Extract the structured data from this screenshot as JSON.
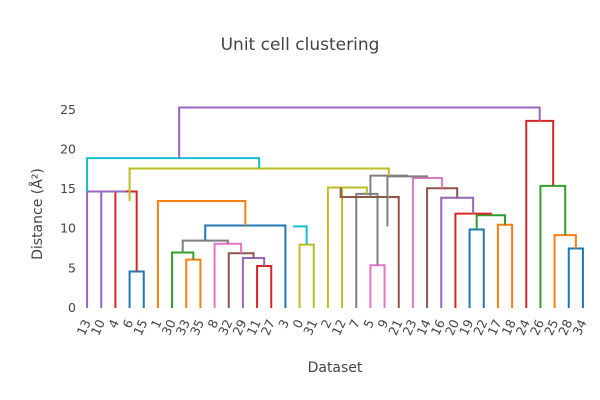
{
  "chart_data": {
    "type": "dendrogram",
    "title": "Unit cell clustering",
    "xlabel": "Dataset",
    "ylabel": "Distance (Å²)",
    "ylim": [
      0,
      27.5
    ],
    "yticks": [
      0,
      5,
      10,
      15,
      20,
      25
    ],
    "ytick_labels": [
      "0",
      "5",
      "10",
      "15",
      "20",
      "25"
    ],
    "grid": false,
    "leaves": [
      "13",
      "10",
      "4",
      "6",
      "15",
      "1",
      "30",
      "33",
      "35",
      "8",
      "32",
      "29",
      "11",
      "27",
      "3",
      "0",
      "31",
      "2",
      "12",
      "7",
      "5",
      "9",
      "21",
      "23",
      "14",
      "16",
      "20",
      "19",
      "22",
      "17",
      "18",
      "24",
      "26",
      "25",
      "28",
      "34"
    ],
    "links": [
      {
        "left": 3,
        "right": 4,
        "height": 4.6,
        "left_height": 0,
        "right_height": 0,
        "color": "#1f77b4"
      },
      {
        "left": 2,
        "right": 3.5,
        "height": 14.7,
        "left_height": 0,
        "right_height": 4.6,
        "color": "#d62728"
      },
      {
        "left": 1,
        "right": 2.75,
        "height": 14.7,
        "left_height": 0,
        "right_height": 14.7,
        "color": "#9467bd"
      },
      {
        "left": 0,
        "right": 1.875,
        "height": 14.7,
        "left_height": 0,
        "right_height": 14.7,
        "color": "#9467bd"
      },
      {
        "left": 7,
        "right": 8,
        "height": 6.1,
        "left_height": 0,
        "right_height": 0,
        "color": "#ff7f0e"
      },
      {
        "left": 6,
        "right": 7.5,
        "height": 7.0,
        "left_height": 0,
        "right_height": 6.1,
        "color": "#2ca02c"
      },
      {
        "left": 12,
        "right": 13,
        "height": 5.3,
        "left_height": 0,
        "right_height": 0,
        "color": "#d62728"
      },
      {
        "left": 11,
        "right": 12.5,
        "height": 6.3,
        "left_height": 0,
        "right_height": 5.3,
        "color": "#9467bd"
      },
      {
        "left": 10,
        "right": 11.75,
        "height": 6.9,
        "left_height": 0,
        "right_height": 6.3,
        "color": "#8c564b"
      },
      {
        "left": 9,
        "right": 10.875,
        "height": 8.1,
        "left_height": 0,
        "right_height": 6.9,
        "color": "#e377c2"
      },
      {
        "left": 6.75,
        "right": 9.9375,
        "height": 8.5,
        "left_height": 7.0,
        "right_height": 8.1,
        "color": "#7f7f7f"
      },
      {
        "left": 8.34,
        "right": 14,
        "height": 10.4,
        "left_height": 8.5,
        "right_height": 0,
        "color": "#1f77b4"
      },
      {
        "left": 5,
        "right": 11.17,
        "height": 13.5,
        "left_height": 0,
        "right_height": 10.4,
        "color": "#ff7f0e"
      },
      {
        "left": 15,
        "right": 16,
        "height": 8.0,
        "left_height": 0,
        "right_height": 0,
        "color": "#bcbd22"
      },
      {
        "left": 14.6,
        "right": 15.5,
        "height": 10.3,
        "left_height": 10.4,
        "right_height": 8.0,
        "color": "#17becf"
      },
      {
        "left": 20,
        "right": 21,
        "height": 5.4,
        "left_height": 0,
        "right_height": 0,
        "color": "#e377c2"
      },
      {
        "left": 19,
        "right": 20.5,
        "height": 14.4,
        "left_height": 0,
        "right_height": 5.4,
        "color": "#7f7f7f"
      },
      {
        "left": 18,
        "right": 19.75,
        "height": 15.2,
        "left_height": 0,
        "right_height": 14.4,
        "color": "#bcbd22"
      },
      {
        "left": 17,
        "right": 18.875,
        "height": 15.2,
        "left_height": 0,
        "right_height": 15.2,
        "color": "#bcbd22"
      },
      {
        "left": 17.9,
        "right": 22,
        "height": 14.0,
        "left_height": 15.2,
        "right_height": 0,
        "color": "#8c564b"
      },
      {
        "left": 27,
        "right": 28,
        "height": 9.9,
        "left_height": 0,
        "right_height": 0,
        "color": "#1f77b4"
      },
      {
        "left": 29,
        "right": 30,
        "height": 10.5,
        "left_height": 0,
        "right_height": 0,
        "color": "#ff7f0e"
      },
      {
        "left": 27.5,
        "right": 29.5,
        "height": 11.7,
        "left_height": 9.9,
        "right_height": 10.5,
        "color": "#2ca02c"
      },
      {
        "left": 26,
        "right": 28.5,
        "height": 11.9,
        "left_height": 0,
        "right_height": 11.7,
        "color": "#d62728"
      },
      {
        "left": 25,
        "right": 27.25,
        "height": 13.9,
        "left_height": 0,
        "right_height": 11.9,
        "color": "#9467bd"
      },
      {
        "left": 24,
        "right": 26.125,
        "height": 15.1,
        "left_height": 0,
        "right_height": 13.9,
        "color": "#8c564b"
      },
      {
        "left": 23,
        "right": 25.06,
        "height": 16.4,
        "left_height": 0,
        "right_height": 15.1,
        "color": "#e377c2"
      },
      {
        "left": 21.2,
        "right": 24.0,
        "height": 16.6,
        "left_height": 10.3,
        "right_height": 16.4,
        "color": "#7f7f7f"
      },
      {
        "left": 20.0,
        "right": 22.6,
        "height": 16.7,
        "left_height": 14.0,
        "right_height": 16.6,
        "color": "#7f7f7f"
      },
      {
        "left": 3.0,
        "right": 21.3,
        "height": 17.6,
        "left_height": 13.5,
        "right_height": 16.7,
        "color": "#bcbd22"
      },
      {
        "left": 0,
        "right": 12.15,
        "height": 18.9,
        "left_height": 14.7,
        "right_height": 17.6,
        "color": "#17becf"
      },
      {
        "left": 34,
        "right": 35,
        "height": 7.5,
        "left_height": 0,
        "right_height": 0,
        "color": "#1f77b4"
      },
      {
        "left": 33,
        "right": 34.5,
        "height": 9.2,
        "left_height": 0,
        "right_height": 7.5,
        "color": "#ff7f0e"
      },
      {
        "left": 32,
        "right": 33.75,
        "height": 15.4,
        "left_height": 0,
        "right_height": 9.2,
        "color": "#2ca02c"
      },
      {
        "left": 31,
        "right": 32.9,
        "height": 23.6,
        "left_height": 0,
        "right_height": 15.4,
        "color": "#d62728"
      },
      {
        "left": 6.5,
        "right": 31.95,
        "height": 25.3,
        "left_height": 18.9,
        "right_height": 23.6,
        "color": "#9467bd"
      }
    ]
  }
}
